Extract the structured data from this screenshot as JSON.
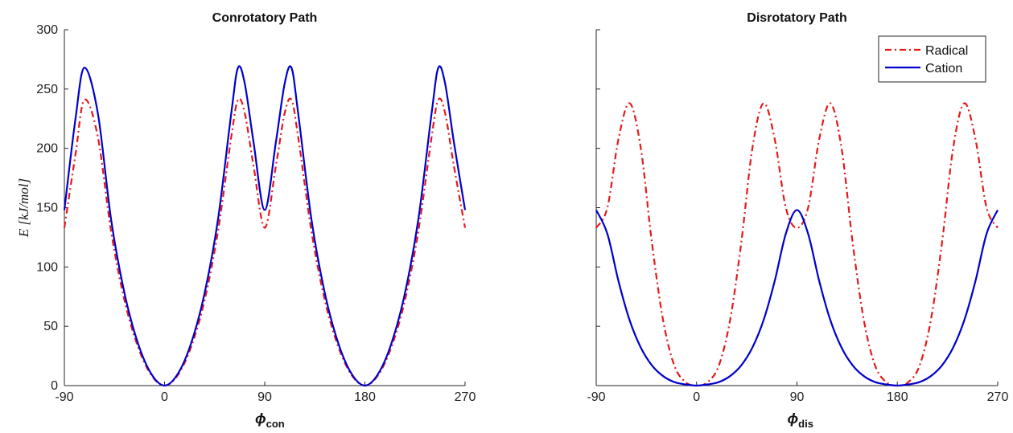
{
  "chart_data": [
    {
      "type": "line",
      "title": "Conrotatory Path",
      "xlabel": "ϕ",
      "xlabel_sub": "con",
      "ylabel": "E [kJ/mol]",
      "xlim": [
        -90,
        270
      ],
      "ylim": [
        0,
        300
      ],
      "xticks": [
        -90,
        0,
        90,
        180,
        270
      ],
      "yticks": [
        0,
        50,
        100,
        150,
        200,
        250,
        300
      ],
      "x": [
        -90,
        -80,
        -72,
        -60,
        -48,
        -36,
        -24,
        -12,
        0,
        12,
        24,
        36,
        48,
        60,
        66,
        72,
        80,
        90,
        100,
        108,
        114,
        120,
        132,
        144,
        156,
        168,
        180,
        192,
        204,
        216,
        228,
        240,
        246,
        252,
        260,
        270
      ],
      "series": [
        {
          "name": "Radical",
          "color": "#e31a1c",
          "style": "dashdot",
          "values": [
            133,
            195,
            241,
            210,
            130,
            72,
            33,
            9,
            0,
            9,
            33,
            72,
            130,
            210,
            241,
            230,
            185,
            133,
            185,
            230,
            241,
            210,
            130,
            72,
            33,
            9,
            0,
            9,
            33,
            72,
            130,
            210,
            241,
            230,
            185,
            133
          ]
        },
        {
          "name": "Cation",
          "color": "#0000cc",
          "style": "solid",
          "values": [
            148,
            225,
            268,
            230,
            140,
            78,
            36,
            10,
            0,
            10,
            36,
            78,
            140,
            230,
            268,
            255,
            205,
            148,
            205,
            255,
            268,
            230,
            140,
            78,
            36,
            10,
            0,
            10,
            36,
            78,
            140,
            230,
            268,
            255,
            205,
            148
          ]
        }
      ]
    },
    {
      "type": "line",
      "title": "Disrotatory Path",
      "xlabel": "ϕ",
      "xlabel_sub": "dis",
      "xlim": [
        -90,
        270
      ],
      "ylim": [
        0,
        300
      ],
      "xticks": [
        -90,
        0,
        90,
        180,
        270
      ],
      "legend": {
        "placement": "top-right",
        "entries": [
          "Radical",
          "Cation"
        ]
      },
      "x": [
        -90,
        -80,
        -70,
        -60,
        -50,
        -40,
        -30,
        -20,
        -10,
        0,
        10,
        20,
        30,
        40,
        50,
        60,
        70,
        80,
        90,
        100,
        110,
        120,
        130,
        140,
        150,
        160,
        170,
        180,
        190,
        200,
        210,
        220,
        230,
        240,
        250,
        260,
        270
      ],
      "series": [
        {
          "name": "Radical",
          "color": "#e31a1c",
          "style": "dashdot",
          "values": [
            133,
            150,
            208,
            238,
            200,
            120,
            55,
            17,
            3,
            0,
            3,
            17,
            55,
            120,
            200,
            238,
            208,
            150,
            133,
            150,
            208,
            238,
            200,
            120,
            55,
            17,
            3,
            0,
            3,
            17,
            55,
            120,
            200,
            238,
            208,
            150,
            133
          ]
        },
        {
          "name": "Cation",
          "color": "#0000cc",
          "style": "solid",
          "values": [
            148,
            128,
            88,
            55,
            32,
            17,
            8,
            3,
            1,
            0,
            1,
            3,
            8,
            17,
            32,
            55,
            88,
            128,
            148,
            128,
            88,
            55,
            32,
            17,
            8,
            3,
            1,
            0,
            1,
            3,
            8,
            17,
            32,
            55,
            88,
            128,
            148
          ]
        }
      ]
    }
  ]
}
